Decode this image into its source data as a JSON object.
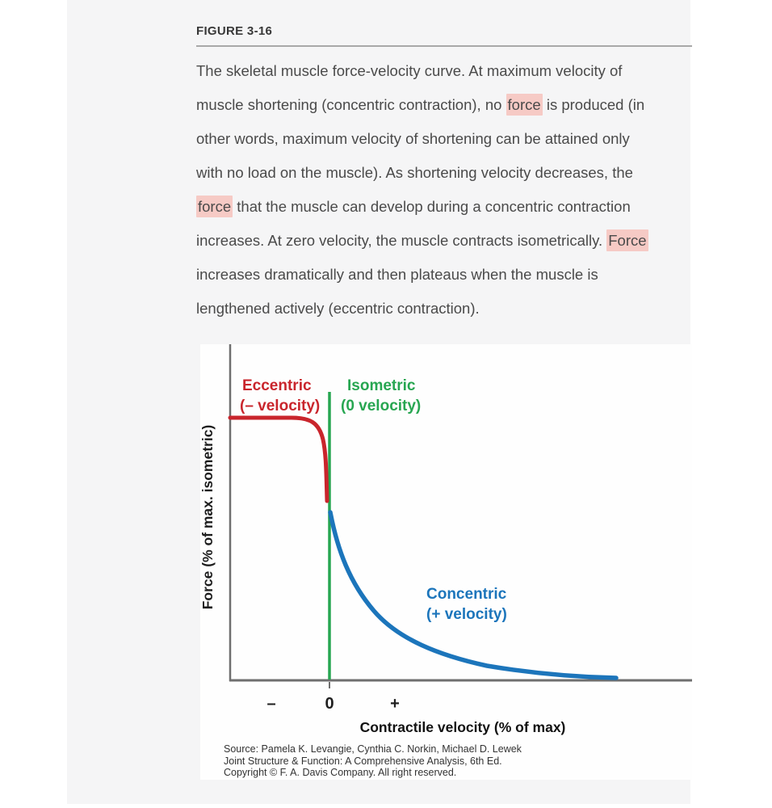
{
  "figure": {
    "label": "FIGURE 3-16",
    "caption_lines": [
      [
        {
          "t": "The skeletal muscle force-velocity curve. At maximum velocity of"
        }
      ],
      [
        {
          "t": "muscle shortening (concentric contraction), no "
        },
        {
          "t": "force",
          "hl": true
        },
        {
          "t": " is produced (in"
        }
      ],
      [
        {
          "t": "other words, maximum velocity of shortening can be attained only"
        }
      ],
      [
        {
          "t": "with no load on the muscle). As shortening velocity decreases, the"
        }
      ],
      [
        {
          "t": "force",
          "hl": true
        },
        {
          "t": " that the muscle can develop during a concentric contraction"
        }
      ],
      [
        {
          "t": "increases. At zero velocity, the muscle contracts isometrically. "
        },
        {
          "t": "Force",
          "hl": true
        }
      ],
      [
        {
          "t": "increases dramatically and then plateaus when the muscle is"
        }
      ],
      [
        {
          "t": "lengthened actively (eccentric contraction)."
        }
      ]
    ],
    "source_lines": [
      "Source: Pamela K. Levangie, Cynthia C. Norkin, Michael D. Lewek",
      "Joint Structure & Function: A Comprehensive Analysis, 6th Ed.",
      "Copyright © F. A. Davis Company. All right reserved."
    ]
  },
  "chart": {
    "ylabel": "Force (% of max. isometric)",
    "xlabel": "Contractile velocity (% of max)",
    "eccentric_label_line1": "Eccentric",
    "eccentric_label_line2": "(– velocity)",
    "isometric_label_line1": "Isometric",
    "isometric_label_line2": "(0 velocity)",
    "concentric_label_line1": "Concentric",
    "concentric_label_line2": "(+ velocity)",
    "tick_minus": "–",
    "tick_zero": "0",
    "tick_plus": "+"
  },
  "chart_data": {
    "type": "line",
    "title": "",
    "xlabel": "Contractile velocity (% of max)",
    "ylabel": "Force (% of max. isometric)",
    "x_tick_labels": [
      "–",
      "0",
      "+"
    ],
    "ylim": [
      0,
      100
    ],
    "grid": false,
    "legend_position": "inline-annotations",
    "series": [
      {
        "name": "Eccentric (– velocity)",
        "color": "#c9252c",
        "points": [
          [
            -58,
            78
          ],
          [
            -30,
            78
          ],
          [
            -20,
            78
          ],
          [
            -12,
            74
          ],
          [
            -6,
            63
          ],
          [
            -3,
            56
          ],
          [
            -1,
            52
          ]
        ]
      },
      {
        "name": "Isometric (0 velocity)",
        "color": "#27a651",
        "points": [
          [
            0,
            51
          ]
        ]
      },
      {
        "name": "Concentric (+ velocity)",
        "color": "#1c75bb",
        "points": [
          [
            0,
            50
          ],
          [
            5,
            40
          ],
          [
            12,
            28
          ],
          [
            22,
            17
          ],
          [
            35,
            9
          ],
          [
            50,
            5
          ],
          [
            68,
            2
          ],
          [
            85,
            1
          ]
        ]
      }
    ],
    "annotations": [
      "Eccentric (– velocity)",
      "Isometric (0 velocity)",
      "Concentric (+ velocity)"
    ]
  },
  "colors": {
    "page_background": "#ffffff",
    "column_background": "#f5f5f6",
    "figure_background": "#fefefe",
    "body_text": "#4a4a4a",
    "heading_text": "#383838",
    "highlight": "#f6cac5",
    "eccentric_red": "#c9252c",
    "isometric_green": "#27a651",
    "concentric_blue": "#1c75bb",
    "axis_gray": "#6f6f6f"
  }
}
